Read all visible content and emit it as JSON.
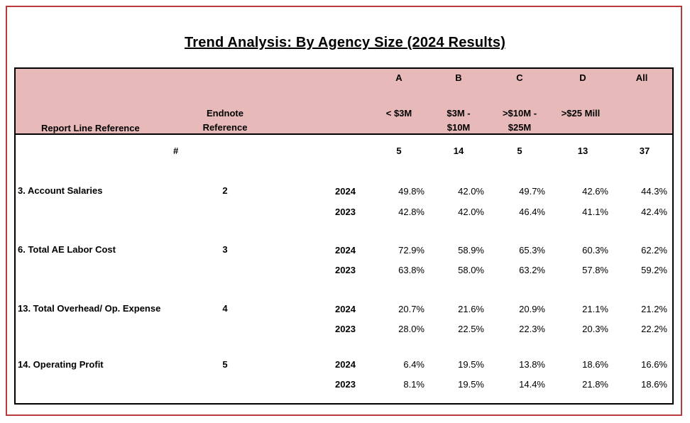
{
  "title": "Trend Analysis: By Agency Size (2024 Results)",
  "header": {
    "report_line_reference": "Report Line Reference",
    "endnote_line1": "Endnote",
    "endnote_line2": "Reference",
    "columns": [
      {
        "letter": "A",
        "line1": "< $3M",
        "line2": ""
      },
      {
        "letter": "B",
        "line1": "$3M -",
        "line2": "$10M"
      },
      {
        "letter": "C",
        "line1": ">$10M -",
        "line2": "$25M"
      },
      {
        "letter": "D",
        "line1": ">$25 Mill",
        "line2": ""
      },
      {
        "letter": "All",
        "line1": "",
        "line2": ""
      }
    ]
  },
  "count_row": {
    "label": "#",
    "values": [
      "5",
      "14",
      "5",
      "13",
      "37"
    ]
  },
  "rows": [
    {
      "label": "3. Account Salaries",
      "endnote": "2",
      "years": [
        {
          "year": "2024",
          "values": [
            "49.8%",
            "42.0%",
            "49.7%",
            "42.6%",
            "44.3%"
          ]
        },
        {
          "year": "2023",
          "values": [
            "42.8%",
            "42.0%",
            "46.4%",
            "41.1%",
            "42.4%"
          ]
        }
      ]
    },
    {
      "label": "6. Total AE Labor Cost",
      "endnote": "3",
      "years": [
        {
          "year": "2024",
          "values": [
            "72.9%",
            "58.9%",
            "65.3%",
            "60.3%",
            "62.2%"
          ]
        },
        {
          "year": "2023",
          "values": [
            "63.8%",
            "58.0%",
            "63.2%",
            "57.8%",
            "59.2%"
          ]
        }
      ]
    },
    {
      "label": "13. Total Overhead/ Op. Expense",
      "endnote": "4",
      "years": [
        {
          "year": "2024",
          "values": [
            "20.7%",
            "21.6%",
            "20.9%",
            "21.1%",
            "21.2%"
          ]
        },
        {
          "year": "2023",
          "values": [
            "28.0%",
            "22.5%",
            "22.3%",
            "20.3%",
            "22.2%"
          ]
        }
      ]
    },
    {
      "label": "14. Operating Profit",
      "endnote": "5",
      "years": [
        {
          "year": "2024",
          "values": [
            "6.4%",
            "19.5%",
            "13.8%",
            "18.6%",
            "16.6%"
          ]
        },
        {
          "year": "2023",
          "values": [
            "8.1%",
            "19.5%",
            "14.4%",
            "21.8%",
            "18.6%"
          ]
        }
      ]
    }
  ]
}
